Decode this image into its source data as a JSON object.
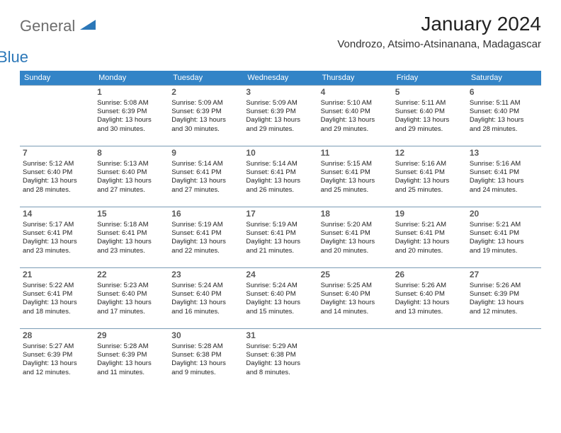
{
  "logo": {
    "text1": "General",
    "text2": "Blue"
  },
  "title": "January 2024",
  "location": "Vondrozo, Atsimo-Atsinanana, Madagascar",
  "colors": {
    "header_bg": "#3384c7",
    "header_text": "#ffffff",
    "cell_border": "#7a9bb5",
    "daynum": "#5a5a5a",
    "body_text": "#222222",
    "logo_gray": "#6d6d6d",
    "logo_blue": "#2b77b8"
  },
  "day_labels": [
    "Sunday",
    "Monday",
    "Tuesday",
    "Wednesday",
    "Thursday",
    "Friday",
    "Saturday"
  ],
  "weeks": [
    [
      null,
      {
        "n": "1",
        "sr": "Sunrise: 5:08 AM",
        "ss": "Sunset: 6:39 PM",
        "d1": "Daylight: 13 hours",
        "d2": "and 30 minutes."
      },
      {
        "n": "2",
        "sr": "Sunrise: 5:09 AM",
        "ss": "Sunset: 6:39 PM",
        "d1": "Daylight: 13 hours",
        "d2": "and 30 minutes."
      },
      {
        "n": "3",
        "sr": "Sunrise: 5:09 AM",
        "ss": "Sunset: 6:39 PM",
        "d1": "Daylight: 13 hours",
        "d2": "and 29 minutes."
      },
      {
        "n": "4",
        "sr": "Sunrise: 5:10 AM",
        "ss": "Sunset: 6:40 PM",
        "d1": "Daylight: 13 hours",
        "d2": "and 29 minutes."
      },
      {
        "n": "5",
        "sr": "Sunrise: 5:11 AM",
        "ss": "Sunset: 6:40 PM",
        "d1": "Daylight: 13 hours",
        "d2": "and 29 minutes."
      },
      {
        "n": "6",
        "sr": "Sunrise: 5:11 AM",
        "ss": "Sunset: 6:40 PM",
        "d1": "Daylight: 13 hours",
        "d2": "and 28 minutes."
      }
    ],
    [
      {
        "n": "7",
        "sr": "Sunrise: 5:12 AM",
        "ss": "Sunset: 6:40 PM",
        "d1": "Daylight: 13 hours",
        "d2": "and 28 minutes."
      },
      {
        "n": "8",
        "sr": "Sunrise: 5:13 AM",
        "ss": "Sunset: 6:40 PM",
        "d1": "Daylight: 13 hours",
        "d2": "and 27 minutes."
      },
      {
        "n": "9",
        "sr": "Sunrise: 5:14 AM",
        "ss": "Sunset: 6:41 PM",
        "d1": "Daylight: 13 hours",
        "d2": "and 27 minutes."
      },
      {
        "n": "10",
        "sr": "Sunrise: 5:14 AM",
        "ss": "Sunset: 6:41 PM",
        "d1": "Daylight: 13 hours",
        "d2": "and 26 minutes."
      },
      {
        "n": "11",
        "sr": "Sunrise: 5:15 AM",
        "ss": "Sunset: 6:41 PM",
        "d1": "Daylight: 13 hours",
        "d2": "and 25 minutes."
      },
      {
        "n": "12",
        "sr": "Sunrise: 5:16 AM",
        "ss": "Sunset: 6:41 PM",
        "d1": "Daylight: 13 hours",
        "d2": "and 25 minutes."
      },
      {
        "n": "13",
        "sr": "Sunrise: 5:16 AM",
        "ss": "Sunset: 6:41 PM",
        "d1": "Daylight: 13 hours",
        "d2": "and 24 minutes."
      }
    ],
    [
      {
        "n": "14",
        "sr": "Sunrise: 5:17 AM",
        "ss": "Sunset: 6:41 PM",
        "d1": "Daylight: 13 hours",
        "d2": "and 23 minutes."
      },
      {
        "n": "15",
        "sr": "Sunrise: 5:18 AM",
        "ss": "Sunset: 6:41 PM",
        "d1": "Daylight: 13 hours",
        "d2": "and 23 minutes."
      },
      {
        "n": "16",
        "sr": "Sunrise: 5:19 AM",
        "ss": "Sunset: 6:41 PM",
        "d1": "Daylight: 13 hours",
        "d2": "and 22 minutes."
      },
      {
        "n": "17",
        "sr": "Sunrise: 5:19 AM",
        "ss": "Sunset: 6:41 PM",
        "d1": "Daylight: 13 hours",
        "d2": "and 21 minutes."
      },
      {
        "n": "18",
        "sr": "Sunrise: 5:20 AM",
        "ss": "Sunset: 6:41 PM",
        "d1": "Daylight: 13 hours",
        "d2": "and 20 minutes."
      },
      {
        "n": "19",
        "sr": "Sunrise: 5:21 AM",
        "ss": "Sunset: 6:41 PM",
        "d1": "Daylight: 13 hours",
        "d2": "and 20 minutes."
      },
      {
        "n": "20",
        "sr": "Sunrise: 5:21 AM",
        "ss": "Sunset: 6:41 PM",
        "d1": "Daylight: 13 hours",
        "d2": "and 19 minutes."
      }
    ],
    [
      {
        "n": "21",
        "sr": "Sunrise: 5:22 AM",
        "ss": "Sunset: 6:41 PM",
        "d1": "Daylight: 13 hours",
        "d2": "and 18 minutes."
      },
      {
        "n": "22",
        "sr": "Sunrise: 5:23 AM",
        "ss": "Sunset: 6:40 PM",
        "d1": "Daylight: 13 hours",
        "d2": "and 17 minutes."
      },
      {
        "n": "23",
        "sr": "Sunrise: 5:24 AM",
        "ss": "Sunset: 6:40 PM",
        "d1": "Daylight: 13 hours",
        "d2": "and 16 minutes."
      },
      {
        "n": "24",
        "sr": "Sunrise: 5:24 AM",
        "ss": "Sunset: 6:40 PM",
        "d1": "Daylight: 13 hours",
        "d2": "and 15 minutes."
      },
      {
        "n": "25",
        "sr": "Sunrise: 5:25 AM",
        "ss": "Sunset: 6:40 PM",
        "d1": "Daylight: 13 hours",
        "d2": "and 14 minutes."
      },
      {
        "n": "26",
        "sr": "Sunrise: 5:26 AM",
        "ss": "Sunset: 6:40 PM",
        "d1": "Daylight: 13 hours",
        "d2": "and 13 minutes."
      },
      {
        "n": "27",
        "sr": "Sunrise: 5:26 AM",
        "ss": "Sunset: 6:39 PM",
        "d1": "Daylight: 13 hours",
        "d2": "and 12 minutes."
      }
    ],
    [
      {
        "n": "28",
        "sr": "Sunrise: 5:27 AM",
        "ss": "Sunset: 6:39 PM",
        "d1": "Daylight: 13 hours",
        "d2": "and 12 minutes."
      },
      {
        "n": "29",
        "sr": "Sunrise: 5:28 AM",
        "ss": "Sunset: 6:39 PM",
        "d1": "Daylight: 13 hours",
        "d2": "and 11 minutes."
      },
      {
        "n": "30",
        "sr": "Sunrise: 5:28 AM",
        "ss": "Sunset: 6:38 PM",
        "d1": "Daylight: 13 hours",
        "d2": "and 9 minutes."
      },
      {
        "n": "31",
        "sr": "Sunrise: 5:29 AM",
        "ss": "Sunset: 6:38 PM",
        "d1": "Daylight: 13 hours",
        "d2": "and 8 minutes."
      },
      null,
      null,
      null
    ]
  ]
}
